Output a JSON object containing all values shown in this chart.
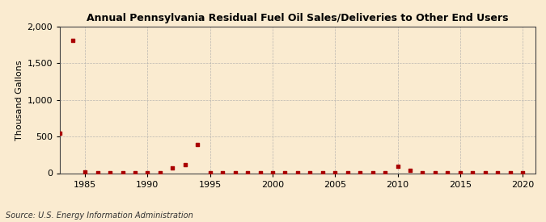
{
  "title": "Annual Pennsylvania Residual Fuel Oil Sales/Deliveries to Other End Users",
  "ylabel": "Thousand Gallons",
  "source": "Source: U.S. Energy Information Administration",
  "background_color": "#faebd0",
  "plot_background_color": "#faebd0",
  "grid_color": "#aaaaaa",
  "point_color": "#aa0000",
  "xlim": [
    1983,
    2021
  ],
  "ylim": [
    0,
    2000
  ],
  "yticks": [
    0,
    500,
    1000,
    1500,
    2000
  ],
  "xticks": [
    1985,
    1990,
    1995,
    2000,
    2005,
    2010,
    2015,
    2020
  ],
  "years": [
    1983,
    1984,
    1985,
    1986,
    1987,
    1988,
    1989,
    1990,
    1991,
    1992,
    1993,
    1994,
    1995,
    1996,
    1997,
    1998,
    1999,
    2000,
    2001,
    2002,
    2003,
    2004,
    2005,
    2006,
    2007,
    2008,
    2009,
    2010,
    2011,
    2012,
    2013,
    2014,
    2015,
    2016,
    2017,
    2018,
    2019,
    2020
  ],
  "values": [
    540,
    1810,
    20,
    4,
    2,
    2,
    2,
    2,
    2,
    75,
    120,
    390,
    4,
    2,
    2,
    2,
    2,
    2,
    2,
    2,
    2,
    2,
    2,
    2,
    2,
    2,
    2,
    95,
    35,
    2,
    2,
    2,
    2,
    2,
    2,
    2,
    2,
    2
  ]
}
